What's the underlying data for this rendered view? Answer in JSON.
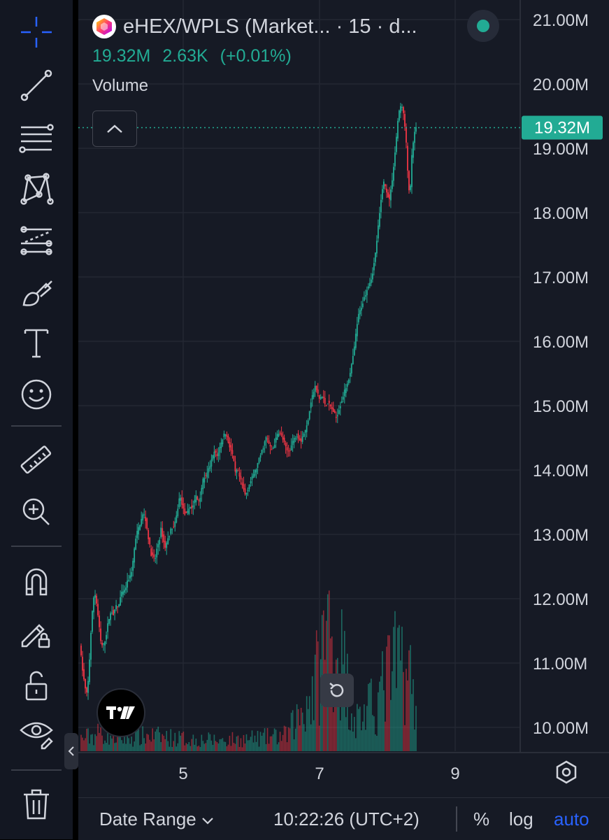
{
  "header": {
    "symbol": "eHEX/WPLS (Market... · 15 · d...",
    "last_price": "19.32M",
    "change": "2.63K",
    "change_pct": "(+0.01%)",
    "volume_label": "Volume"
  },
  "chart_data": {
    "type": "candlestick",
    "price_axis": {
      "ticks": [
        "21.00M",
        "20.00M",
        "19.00M",
        "18.00M",
        "17.00M",
        "16.00M",
        "15.00M",
        "14.00M",
        "13.00M",
        "12.00M",
        "11.00M",
        "10.00M"
      ],
      "range": [
        9.6,
        21.3
      ],
      "last_price_label": "19.32M",
      "last_price": 19.32
    },
    "time_axis": {
      "ticks": [
        "5",
        "7",
        "9"
      ]
    },
    "price_path": [
      [
        0,
        11.3
      ],
      [
        4,
        10.9
      ],
      [
        8,
        10.6
      ],
      [
        11,
        10.5
      ],
      [
        14,
        11.0
      ],
      [
        17,
        11.6
      ],
      [
        20,
        12.0
      ],
      [
        22,
        12.1
      ],
      [
        25,
        11.9
      ],
      [
        28,
        11.6
      ],
      [
        31,
        11.3
      ],
      [
        34,
        11.25
      ],
      [
        38,
        11.4
      ],
      [
        41,
        11.6
      ],
      [
        44,
        11.75
      ],
      [
        47,
        11.8
      ],
      [
        50,
        11.75
      ],
      [
        53,
        11.9
      ],
      [
        56,
        11.85
      ],
      [
        59,
        12.0
      ],
      [
        62,
        12.1
      ],
      [
        65,
        12.1
      ],
      [
        68,
        12.2
      ],
      [
        71,
        12.3
      ],
      [
        74,
        12.35
      ],
      [
        77,
        12.5
      ],
      [
        80,
        12.8
      ],
      [
        83,
        13.0
      ],
      [
        86,
        13.1
      ],
      [
        89,
        13.2
      ],
      [
        92,
        13.3
      ],
      [
        95,
        13.3
      ],
      [
        98,
        13.1
      ],
      [
        101,
        12.9
      ],
      [
        104,
        12.7
      ],
      [
        107,
        12.65
      ],
      [
        110,
        12.6
      ],
      [
        113,
        12.8
      ],
      [
        116,
        12.9
      ],
      [
        119,
        13.1
      ],
      [
        122,
        12.9
      ],
      [
        125,
        12.8
      ],
      [
        128,
        12.9
      ],
      [
        131,
        13.0
      ],
      [
        134,
        13.1
      ],
      [
        137,
        13.1
      ],
      [
        140,
        13.2
      ],
      [
        143,
        13.4
      ],
      [
        146,
        13.6
      ],
      [
        149,
        13.5
      ],
      [
        152,
        13.35
      ],
      [
        155,
        13.3
      ],
      [
        158,
        13.35
      ],
      [
        161,
        13.45
      ],
      [
        164,
        13.4
      ],
      [
        167,
        13.5
      ],
      [
        170,
        13.6
      ],
      [
        173,
        13.5
      ],
      [
        176,
        13.6
      ],
      [
        179,
        13.8
      ],
      [
        182,
        13.9
      ],
      [
        185,
        13.9
      ],
      [
        188,
        14.0
      ],
      [
        191,
        14.1
      ],
      [
        194,
        14.2
      ],
      [
        197,
        14.3
      ],
      [
        200,
        14.2
      ],
      [
        203,
        14.3
      ],
      [
        206,
        14.4
      ],
      [
        209,
        14.5
      ],
      [
        212,
        14.6
      ],
      [
        215,
        14.5
      ],
      [
        218,
        14.4
      ],
      [
        221,
        14.3
      ],
      [
        224,
        14.2
      ],
      [
        227,
        13.95
      ],
      [
        230,
        14.0
      ],
      [
        233,
        13.9
      ],
      [
        236,
        13.8
      ],
      [
        239,
        13.7
      ],
      [
        242,
        13.6
      ],
      [
        245,
        13.7
      ],
      [
        248,
        13.8
      ],
      [
        251,
        13.85
      ],
      [
        254,
        13.95
      ],
      [
        257,
        14.0
      ],
      [
        260,
        14.1
      ],
      [
        263,
        14.2
      ],
      [
        266,
        14.3
      ],
      [
        269,
        14.4
      ],
      [
        272,
        14.5
      ],
      [
        275,
        14.45
      ],
      [
        278,
        14.35
      ],
      [
        281,
        14.3
      ],
      [
        284,
        14.4
      ],
      [
        287,
        14.5
      ],
      [
        290,
        14.6
      ],
      [
        293,
        14.55
      ],
      [
        296,
        14.5
      ],
      [
        299,
        14.4
      ],
      [
        302,
        14.3
      ],
      [
        305,
        14.3
      ],
      [
        308,
        14.35
      ],
      [
        311,
        14.45
      ],
      [
        314,
        14.5
      ],
      [
        317,
        14.55
      ],
      [
        320,
        14.5
      ],
      [
        323,
        14.45
      ],
      [
        326,
        14.55
      ],
      [
        329,
        14.6
      ],
      [
        332,
        14.7
      ],
      [
        335,
        14.9
      ],
      [
        338,
        15.1
      ],
      [
        341,
        15.2
      ],
      [
        344,
        15.3
      ],
      [
        347,
        15.2
      ],
      [
        350,
        15.1
      ],
      [
        353,
        15.15
      ],
      [
        356,
        15.1
      ],
      [
        359,
        15.0
      ],
      [
        362,
        15.05
      ],
      [
        365,
        15.0
      ],
      [
        368,
        14.95
      ],
      [
        371,
        14.9
      ],
      [
        374,
        14.8
      ],
      [
        377,
        14.9
      ],
      [
        380,
        15.0
      ],
      [
        383,
        15.1
      ],
      [
        386,
        15.2
      ],
      [
        389,
        15.3
      ],
      [
        392,
        15.4
      ],
      [
        395,
        15.5
      ],
      [
        398,
        15.7
      ],
      [
        401,
        15.9
      ],
      [
        404,
        16.2
      ],
      [
        407,
        16.4
      ],
      [
        410,
        16.5
      ],
      [
        413,
        16.6
      ],
      [
        416,
        16.7
      ],
      [
        419,
        16.8
      ],
      [
        422,
        16.9
      ],
      [
        425,
        16.95
      ],
      [
        428,
        17.1
      ],
      [
        431,
        17.3
      ],
      [
        434,
        17.6
      ],
      [
        437,
        17.9
      ],
      [
        440,
        18.2
      ],
      [
        443,
        18.5
      ],
      [
        446,
        18.4
      ],
      [
        449,
        18.3
      ],
      [
        452,
        18.2
      ],
      [
        455,
        18.4
      ],
      [
        458,
        18.7
      ],
      [
        461,
        19.0
      ],
      [
        464,
        19.4
      ],
      [
        467,
        19.6
      ],
      [
        470,
        19.7
      ],
      [
        473,
        19.5
      ],
      [
        476,
        19.2
      ],
      [
        479,
        18.6
      ],
      [
        482,
        18.2
      ],
      [
        485,
        18.9
      ],
      [
        488,
        19.2
      ],
      [
        491,
        19.32
      ]
    ],
    "volume_profile": [
      [
        0,
        0.08
      ],
      [
        30,
        0.12
      ],
      [
        60,
        0.08
      ],
      [
        100,
        0.1
      ],
      [
        150,
        0.08
      ],
      [
        200,
        0.07
      ],
      [
        250,
        0.08
      ],
      [
        300,
        0.1
      ],
      [
        340,
        0.4
      ],
      [
        360,
        0.8
      ],
      [
        380,
        0.6
      ],
      [
        400,
        0.2
      ],
      [
        430,
        0.3
      ],
      [
        450,
        0.5
      ],
      [
        470,
        0.6
      ],
      [
        491,
        0.3
      ]
    ],
    "grid": true
  },
  "controls": {
    "reset_icon": "rotate-ccw-icon",
    "tv_logo": "tradingview-logo",
    "settings_icon": "gear-icon"
  },
  "bottom_bar": {
    "date_range": "Date Range",
    "time": "10:22:26 (UTC+2)",
    "percent": "%",
    "log": "log",
    "auto": "auto"
  },
  "toolbar": {
    "items": [
      "crosshair-icon",
      "trend-line-icon",
      "fib-retracement-icon",
      "pattern-icon",
      "prediction-icon",
      "brush-icon",
      "text-icon",
      "emoji-icon",
      "ruler-icon",
      "zoom-in-icon",
      "magnet-icon",
      "lock-drawing-icon",
      "unlock-icon",
      "eye-icon",
      "trash-icon"
    ]
  },
  "colors": {
    "up": "#22ab94",
    "down": "#f23645",
    "background": "#161a25",
    "grid": "#232733",
    "accent": "#2962ff"
  }
}
